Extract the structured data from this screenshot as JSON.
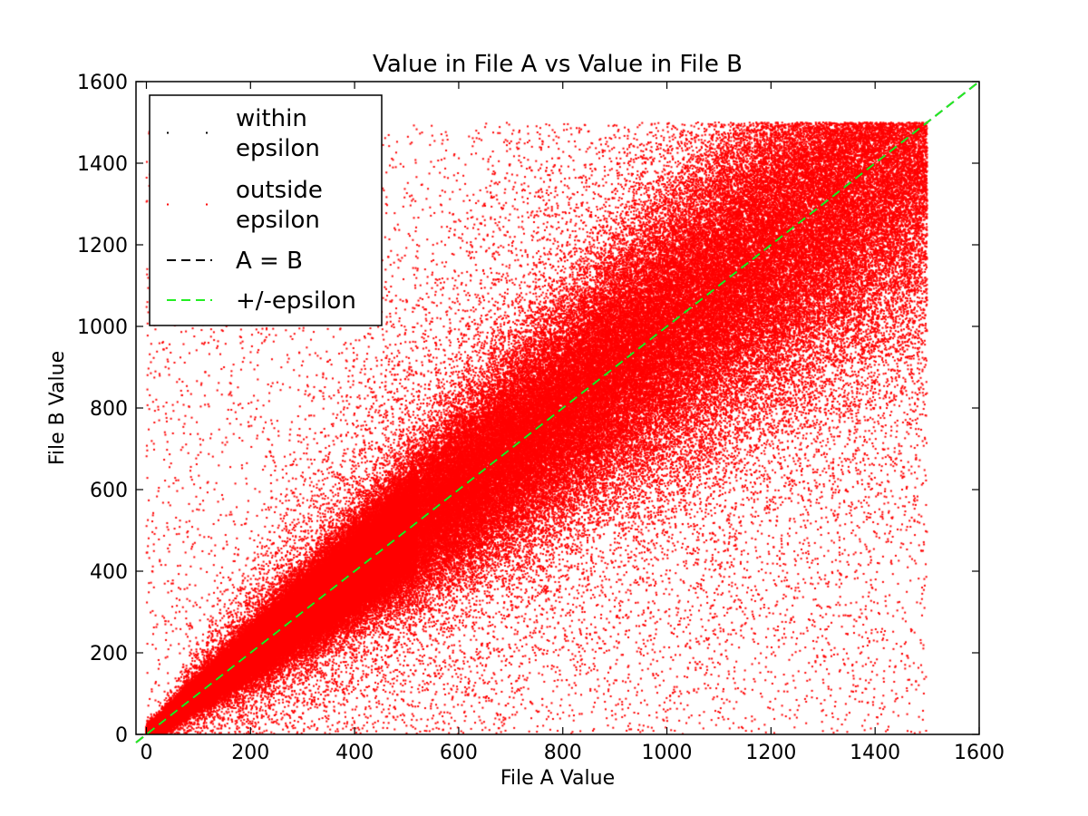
{
  "chart_data": {
    "type": "scatter",
    "title": "Value in File A vs Value in File B",
    "xlabel": "File A Value",
    "ylabel": "File B Value",
    "xlim": [
      -20,
      1600
    ],
    "ylim": [
      0,
      1600
    ],
    "x_ticks": [
      0,
      200,
      400,
      600,
      800,
      1000,
      1200,
      1400,
      1600
    ],
    "y_ticks": [
      0,
      200,
      400,
      600,
      800,
      1000,
      1200,
      1400,
      1600
    ],
    "grid": false,
    "legend_position": "top-left",
    "point_spread": {
      "x_range": [
        0,
        1500
      ],
      "y_range": [
        0,
        1500
      ],
      "approx_points": 200000,
      "density": "concentrated along A = B, sparser further from the diagonal"
    },
    "series": [
      {
        "name": "within\nepsilon",
        "kind": "points",
        "color": "#000000",
        "marker": "dot"
      },
      {
        "name": "outside\nepsilon",
        "kind": "points",
        "color": "#ff0000",
        "marker": "dot"
      },
      {
        "name": "A = B",
        "kind": "line",
        "color": "#000000",
        "style": "dashed",
        "x": [
          -20,
          1600
        ],
        "y": [
          -20,
          1600
        ]
      },
      {
        "name": "+/-epsilon",
        "kind": "line",
        "color": "#22ee22",
        "style": "dashed",
        "x": [
          -20,
          1600
        ],
        "y": [
          -20,
          1600
        ]
      }
    ],
    "legend": [
      {
        "lines": [
          "within",
          "epsilon"
        ],
        "symbol": "dot",
        "color": "#000000"
      },
      {
        "lines": [
          "outside",
          "epsilon"
        ],
        "symbol": "dot",
        "color": "#ff0000"
      },
      {
        "lines": [
          "A = B"
        ],
        "symbol": "dash",
        "color": "#000000"
      },
      {
        "lines": [
          "+/-epsilon"
        ],
        "symbol": "dash",
        "color": "#22ee22"
      }
    ]
  }
}
